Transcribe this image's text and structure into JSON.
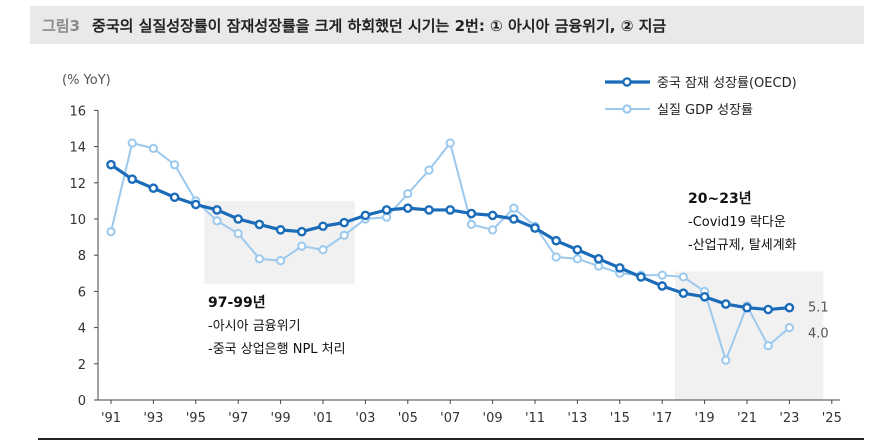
{
  "figure_label": "그림3",
  "title": "중국의 실질성장률이 잠재성장률을 크게 하회했던 시기는 2번: ① 아시아 금융위기, ② 지금",
  "chart_data": {
    "type": "line",
    "ylabel": "(% YoY)",
    "ylim": [
      0,
      16
    ],
    "yticks": [
      0,
      2,
      4,
      6,
      8,
      10,
      12,
      14,
      16
    ],
    "xticks": [
      "'91",
      "'93",
      "'95",
      "'97",
      "'99",
      "'01",
      "'03",
      "'05",
      "'07",
      "'09",
      "'11",
      "'13",
      "'15",
      "'17",
      "'19",
      "'21",
      "'23",
      "'25"
    ],
    "x": [
      1991,
      1992,
      1993,
      1994,
      1995,
      1996,
      1997,
      1998,
      1999,
      2000,
      2001,
      2002,
      2003,
      2004,
      2005,
      2006,
      2007,
      2008,
      2009,
      2010,
      2011,
      2012,
      2013,
      2014,
      2015,
      2016,
      2017,
      2018,
      2019,
      2020,
      2021,
      2022,
      2023
    ],
    "legend_position": "top-right",
    "series": [
      {
        "name": "중국 잠재 성장률(OECD)",
        "color": "#1a6bb8",
        "values": [
          13.0,
          12.2,
          11.7,
          11.2,
          10.8,
          10.5,
          10.0,
          9.7,
          9.4,
          9.3,
          9.6,
          9.8,
          10.2,
          10.5,
          10.6,
          10.5,
          10.5,
          10.3,
          10.2,
          10.0,
          9.5,
          8.8,
          8.3,
          7.8,
          7.3,
          6.8,
          6.3,
          5.9,
          5.7,
          5.3,
          5.1,
          5.0,
          5.1
        ],
        "end_label": "5.1"
      },
      {
        "name": "실질 GDP 성장률",
        "color": "#9cc9ee",
        "values": [
          9.3,
          14.2,
          13.9,
          13.0,
          11.0,
          9.9,
          9.2,
          7.8,
          7.7,
          8.5,
          8.3,
          9.1,
          10.0,
          10.1,
          11.4,
          12.7,
          14.2,
          9.7,
          9.4,
          10.6,
          9.6,
          7.9,
          7.8,
          7.4,
          7.0,
          6.9,
          6.9,
          6.8,
          6.0,
          2.2,
          5.2,
          3.0,
          4.0
        ],
        "end_label": "4.0"
      }
    ],
    "annotations": [
      {
        "title": "97-99년",
        "lines": [
          "-아시아 금융위기",
          "-중국 상업은행 NPL 처리"
        ]
      },
      {
        "title": "20~23년",
        "lines": [
          "-Covid19 락다운",
          "-산업규제, 탈세계화"
        ]
      }
    ]
  }
}
